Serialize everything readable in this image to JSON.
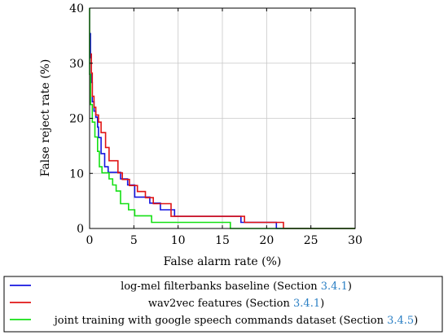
{
  "chart_data": {
    "type": "line",
    "xlabel": "False alarm rate (%)",
    "ylabel": "False reject rate (%)",
    "xlim": [
      0,
      30
    ],
    "ylim": [
      0,
      40
    ],
    "xticks": [
      0,
      5,
      10,
      15,
      20,
      25,
      30
    ],
    "yticks": [
      0,
      10,
      20,
      30,
      40
    ],
    "grid": true,
    "legend_position": "below",
    "series": [
      {
        "name": "log-mel filterbanks baseline",
        "ref_prefix": "(Section ",
        "ref": "3.4.1",
        "ref_suffix": ")",
        "color": "#1414e0",
        "x": [
          0.1,
          0.1,
          0.2,
          0.2,
          0.3,
          0.3,
          0.5,
          0.5,
          0.7,
          0.7,
          0.9,
          0.9,
          1.0,
          1.0,
          1.3,
          1.3,
          1.7,
          1.7,
          2.1,
          2.1,
          3.5,
          3.5,
          4.3,
          4.3,
          5.1,
          5.1,
          6.8,
          6.8,
          8.0,
          8.0,
          9.6,
          9.6,
          17.1,
          17.1,
          21.1,
          21.1,
          30.0
        ],
        "y": [
          35.5,
          31.0,
          31.0,
          26.5,
          26.5,
          23.0,
          23.0,
          21.3,
          21.3,
          20.2,
          20.2,
          18.4,
          18.4,
          16.5,
          16.5,
          13.6,
          13.6,
          11.2,
          11.2,
          10.2,
          10.2,
          9.0,
          9.0,
          7.9,
          7.9,
          5.7,
          5.7,
          4.6,
          4.6,
          3.4,
          3.4,
          2.2,
          2.2,
          1.1,
          1.1,
          0.0,
          0.0
        ]
      },
      {
        "name": "wav2vec features",
        "ref_prefix": "(Section ",
        "ref": "3.4.1",
        "ref_suffix": ")",
        "color": "#e01414",
        "x": [
          0.2,
          0.2,
          0.3,
          0.3,
          0.5,
          0.5,
          0.7,
          0.7,
          1.0,
          1.0,
          1.3,
          1.3,
          1.8,
          1.8,
          2.2,
          2.2,
          3.2,
          3.2,
          3.7,
          3.7,
          4.5,
          4.5,
          5.4,
          5.4,
          6.3,
          6.3,
          7.2,
          7.2,
          9.2,
          9.2,
          17.5,
          17.5,
          21.9,
          21.9,
          30.0
        ],
        "y": [
          31.8,
          28.2,
          28.2,
          24.0,
          24.0,
          22.0,
          22.0,
          20.6,
          20.6,
          19.3,
          19.3,
          17.4,
          17.4,
          14.7,
          14.7,
          12.3,
          12.3,
          10.1,
          10.1,
          8.9,
          8.9,
          7.8,
          7.8,
          6.7,
          6.7,
          5.6,
          5.6,
          4.5,
          4.5,
          2.2,
          2.2,
          1.1,
          1.1,
          0.0,
          0.0
        ]
      },
      {
        "name": "joint training with google speech commands dataset",
        "ref_prefix": "(Section ",
        "ref": "3.4.5",
        "ref_suffix": ")",
        "color": "#14e014",
        "x": [
          0.0,
          0.0,
          0.1,
          0.1,
          0.3,
          0.3,
          0.6,
          0.6,
          0.9,
          0.9,
          1.1,
          1.1,
          1.4,
          1.4,
          2.2,
          2.2,
          2.6,
          2.6,
          3.0,
          3.0,
          3.5,
          3.5,
          4.4,
          4.4,
          5.1,
          5.1,
          7.0,
          7.0,
          15.9,
          15.9,
          30.0
        ],
        "y": [
          40.0,
          28.0,
          28.0,
          22.5,
          22.5,
          19.3,
          19.3,
          16.6,
          16.6,
          14.0,
          14.0,
          11.2,
          11.2,
          10.1,
          10.1,
          9.0,
          9.0,
          7.9,
          7.9,
          6.8,
          6.8,
          4.5,
          4.5,
          3.4,
          3.4,
          2.3,
          2.3,
          1.1,
          1.1,
          0.0,
          0.0
        ]
      }
    ]
  }
}
